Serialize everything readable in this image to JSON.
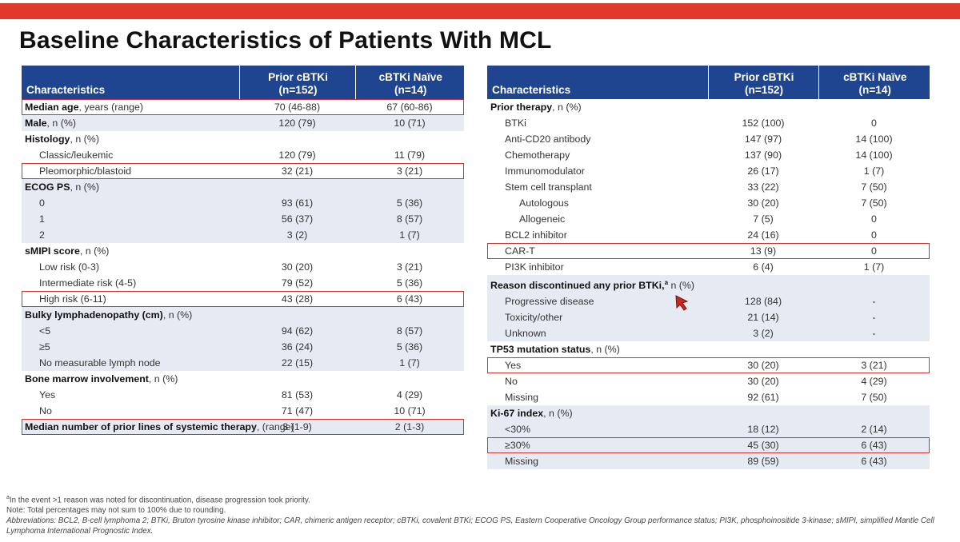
{
  "title": "Baseline Characteristics of Patients With MCL",
  "colors": {
    "accent_bar": "#e03a2e",
    "header": "#1f4590",
    "shade": "#e6eaf3",
    "highlight": "#cc3333"
  },
  "left_table": {
    "headers": {
      "characteristics": "Characteristics",
      "prior": "Prior cBTKi\n(n=152)",
      "naive": "cBTKi Naïve\n(n=14)"
    },
    "rows": [
      {
        "label": "Median age",
        "note": ", years (range)",
        "prior": "70 (46-88)",
        "naive": "67 (60-86)"
      },
      {
        "label": "Male",
        "note": ", n (%)",
        "prior": "120 (79)",
        "naive": "10 (71)"
      },
      {
        "label": "Histology",
        "note": ", n (%)"
      },
      {
        "label": "Classic/leukemic",
        "prior": "120 (79)",
        "naive": "11 (79)"
      },
      {
        "label": "Pleomorphic/blastoid",
        "prior": "32 (21)",
        "naive": "3 (21)"
      },
      {
        "label": "ECOG PS",
        "note": ", n (%)"
      },
      {
        "label": "0",
        "prior": "93 (61)",
        "naive": "5 (36)"
      },
      {
        "label": "1",
        "prior": "56 (37)",
        "naive": "8 (57)"
      },
      {
        "label": "2",
        "prior": "3 (2)",
        "naive": "1 (7)"
      },
      {
        "label": "sMIPI score",
        "note": ", n (%)"
      },
      {
        "label": "Low risk (0-3)",
        "prior": "30 (20)",
        "naive": "3 (21)"
      },
      {
        "label": "Intermediate risk (4-5)",
        "prior": "79 (52)",
        "naive": "5 (36)"
      },
      {
        "label": "High risk (6-11)",
        "prior": "43 (28)",
        "naive": "6 (43)"
      },
      {
        "label": "Bulky lymphadenopathy (cm)",
        "note": ", n (%)"
      },
      {
        "label": "<5",
        "prior": "94 (62)",
        "naive": "8 (57)"
      },
      {
        "label": "≥5",
        "prior": "36 (24)",
        "naive": "5 (36)"
      },
      {
        "label": "No measurable lymph node",
        "prior": "22 (15)",
        "naive": "1 (7)"
      },
      {
        "label": "Bone marrow involvement",
        "note": ", n (%)"
      },
      {
        "label": "Yes",
        "prior": "81 (53)",
        "naive": "4 (29)"
      },
      {
        "label": "No",
        "prior": "71 (47)",
        "naive": "10 (71)"
      },
      {
        "label": "Median number of prior lines of systemic therapy",
        "note": ", (range)",
        "prior": "3 (1-9)",
        "naive": "2 (1-3)"
      }
    ]
  },
  "right_table": {
    "headers": {
      "characteristics": "Characteristics",
      "prior": "Prior cBTKi\n(n=152)",
      "naive": "cBTKi Naïve\n(n=14)"
    },
    "rows": [
      {
        "label": "Prior therapy",
        "note": ", n (%)"
      },
      {
        "label": "BTKi",
        "prior": "152 (100)",
        "naive": "0"
      },
      {
        "label": "Anti-CD20 antibody",
        "prior": "147 (97)",
        "naive": "14 (100)"
      },
      {
        "label": "Chemotherapy",
        "prior": "137 (90)",
        "naive": "14 (100)"
      },
      {
        "label": "Immunomodulator",
        "prior": "26 (17)",
        "naive": "1 (7)"
      },
      {
        "label": "Stem cell transplant",
        "prior": "33 (22)",
        "naive": "7 (50)"
      },
      {
        "label": "Autologous",
        "prior": "30 (20)",
        "naive": "7 (50)"
      },
      {
        "label": "Allogeneic",
        "prior": "7 (5)",
        "naive": "0"
      },
      {
        "label": "BCL2 inhibitor",
        "prior": "24 (16)",
        "naive": "0"
      },
      {
        "label": "CAR-T",
        "prior": "13 (9)",
        "naive": "0"
      },
      {
        "label": "PI3K inhibitor",
        "prior": "6 (4)",
        "naive": "1 (7)"
      },
      {
        "label": "Reason discontinued any prior BTKi,",
        "sup": "a",
        "note": " n (%)"
      },
      {
        "label": "Progressive disease",
        "prior": "128 (84)",
        "naive": "-"
      },
      {
        "label": "Toxicity/other",
        "prior": "21 (14)",
        "naive": "-"
      },
      {
        "label": "Unknown",
        "prior": "3 (2)",
        "naive": "-"
      },
      {
        "label": "TP53 mutation status",
        "note": ", n (%)"
      },
      {
        "label": "Yes",
        "prior": "30 (20)",
        "naive": "3 (21)"
      },
      {
        "label": "No",
        "prior": "30 (20)",
        "naive": "4 (29)"
      },
      {
        "label": "Missing",
        "prior": "92 (61)",
        "naive": "7 (50)"
      },
      {
        "label": "Ki-67 index",
        "note": ", n (%)"
      },
      {
        "label": "<30%",
        "prior": "18 (12)",
        "naive": "2 (14)"
      },
      {
        "label": "≥30%",
        "prior": "45 (30)",
        "naive": "6 (43)"
      },
      {
        "label": "Missing",
        "prior": "89 (59)",
        "naive": "6 (43)"
      }
    ]
  },
  "footnotes": {
    "a_sup": "a",
    "a": "In the event >1 reason was noted for discontinuation, disease progression took priority.",
    "note": "Note: Total percentages may not sum to 100% due to rounding.",
    "abbreviations": "Abbreviations: BCL2, B-cell lymphoma 2; BTKi, Bruton tyrosine kinase inhibitor; CAR, chimeric antigen receptor; cBTKi, covalent BTKi; ECOG PS, Eastern Cooperative Oncology Group performance status; PI3K, phosphoinositide 3-kinase; sMIPI, simplified Mantle Cell Lymphoma International Prognostic Index."
  },
  "cursor_icon": "mouse-pointer-icon"
}
